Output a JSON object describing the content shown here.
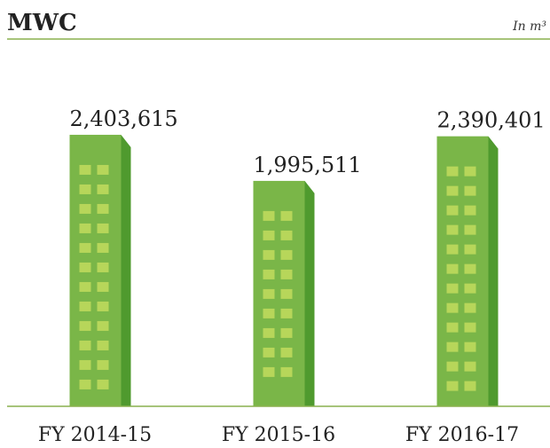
{
  "chart_data": {
    "type": "bar",
    "title": "MWC",
    "unit": "In m³",
    "categories": [
      "FY 2014-15",
      "FY 2015-16",
      "FY 2016-17"
    ],
    "values": [
      2403615,
      1995511,
      2390401
    ],
    "value_labels": [
      "2,403,615",
      "1,995,511",
      "2,390,401"
    ],
    "color": "#7ab648",
    "ylim": [
      0,
      3000000
    ]
  }
}
